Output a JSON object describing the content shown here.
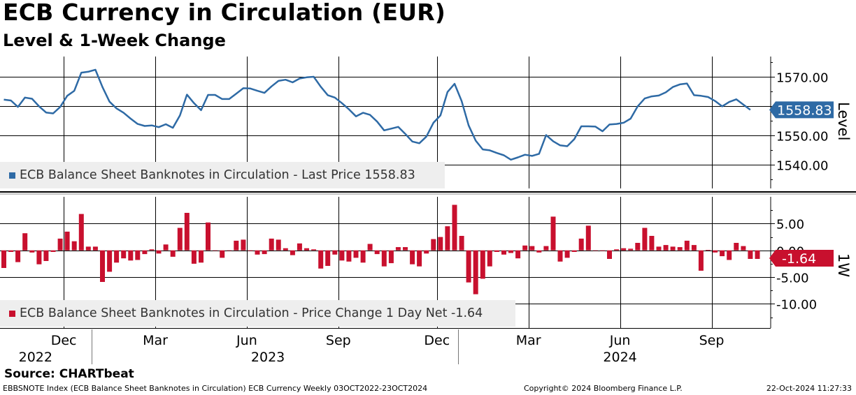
{
  "header": {
    "title": "ECB Currency in Circulation (EUR)",
    "subtitle": "Level & 1-Week Change"
  },
  "legend": {
    "level": "ECB Balance Sheet Banknotes in Circulation - Last Price 1558.83",
    "change": "ECB Balance Sheet Banknotes in Circulation - Price Change 1 Day Net -1.64"
  },
  "footer": {
    "source": "Source: CHARTbeat",
    "index_info": "EBBSNOTE Index (ECB Balance Sheet Banknotes in Circulation) ECB Currency  Weekly 03OCT2022-23OCT2024",
    "copyright": "Copyright© 2024 Bloomberg Finance L.P.",
    "timestamp": "22-Oct-2024 11:27:33"
  },
  "colors": {
    "level_line": "#2e6aa5",
    "change_bar": "#c8102e",
    "grid": "#000000",
    "legend_bg": "#eeeeee"
  },
  "chart_data": [
    {
      "type": "line",
      "name": "Level",
      "axis_label": "Level",
      "ylim": [
        1532,
        1577
      ],
      "yticks": [
        1540,
        1550,
        1560,
        1570
      ],
      "ytick_labels": [
        "1540.00",
        "1550.00",
        "1560.00",
        "1570.00"
      ],
      "last_value_label": "1558.83",
      "values": [
        1562.3,
        1562.0,
        1559.8,
        1563.0,
        1562.6,
        1560.0,
        1557.9,
        1557.6,
        1559.8,
        1563.6,
        1565.3,
        1571.5,
        1571.8,
        1572.5,
        1566.6,
        1561.6,
        1559.3,
        1557.8,
        1555.8,
        1554.0,
        1553.3,
        1553.5,
        1552.9,
        1553.9,
        1552.7,
        1556.9,
        1564.0,
        1561.1,
        1558.7,
        1563.9,
        1563.9,
        1562.5,
        1562.5,
        1564.3,
        1566.2,
        1566.1,
        1565.3,
        1564.6,
        1566.8,
        1568.7,
        1569.1,
        1568.2,
        1569.5,
        1569.9,
        1570.1,
        1566.7,
        1563.8,
        1563.0,
        1561.1,
        1559.0,
        1556.6,
        1557.8,
        1557.1,
        1554.8,
        1551.8,
        1552.4,
        1553.0,
        1550.6,
        1548.0,
        1547.4,
        1549.7,
        1554.4,
        1556.9,
        1564.9,
        1567.7,
        1561.8,
        1553.5,
        1548.3,
        1545.3,
        1545.0,
        1544.1,
        1543.3,
        1541.8,
        1542.6,
        1543.5,
        1543.1,
        1543.8,
        1550.2,
        1548.1,
        1546.7,
        1546.4,
        1548.8,
        1553.2,
        1553.2,
        1553.1,
        1551.5,
        1553.8,
        1554.0,
        1554.4,
        1555.8,
        1560.0,
        1562.7,
        1563.4,
        1563.7,
        1564.8,
        1566.6,
        1567.5,
        1567.8,
        1563.8,
        1563.6,
        1563.2,
        1561.8,
        1560.0,
        1561.5,
        1562.4,
        1560.6,
        1558.8
      ]
    },
    {
      "type": "bar",
      "name": "1-Week Change",
      "axis_label": "1W",
      "ylim": [
        -14.5,
        10
      ],
      "yticks": [
        -10,
        -5,
        0,
        5
      ],
      "ytick_labels": [
        "-10.00",
        "-5.00",
        "0.00",
        "5.00"
      ],
      "last_value_label": "-1.64",
      "values": [
        -3.3,
        -0.3,
        -2.2,
        3.2,
        -0.4,
        -2.6,
        -2.0,
        -0.3,
        2.2,
        3.5,
        1.7,
        6.8,
        0.7,
        0.7,
        -5.9,
        -4.0,
        -2.3,
        -1.5,
        -1.9,
        -1.8,
        -0.7,
        0.2,
        -0.6,
        1.1,
        -1.2,
        4.2,
        7.0,
        -2.5,
        -2.3,
        5.2,
        0.0,
        -1.4,
        0.0,
        1.8,
        2.0,
        -0.1,
        -0.8,
        -0.7,
        2.2,
        2.0,
        0.4,
        -0.9,
        1.3,
        0.4,
        0.2,
        -3.4,
        -2.9,
        -0.8,
        -1.9,
        -2.1,
        -1.4,
        -2.3,
        1.2,
        -0.7,
        -3.0,
        -2.4,
        0.6,
        0.6,
        -2.6,
        -3.0,
        -0.6,
        2.1,
        2.5,
        4.5,
        8.5,
        2.7,
        -6.0,
        -8.2,
        -5.3,
        -3.0,
        -0.3,
        -0.8,
        -0.5,
        -1.5,
        0.9,
        0.8,
        -0.4,
        0.8,
        6.3,
        -2.1,
        -1.4,
        -0.3,
        2.2,
        4.6,
        0.0,
        -0.1,
        -1.6,
        0.2,
        0.4,
        0.3,
        1.4,
        4.2,
        2.7,
        0.7,
        1.0,
        0.7,
        0.6,
        1.8,
        1.0,
        -3.8,
        0.1,
        -0.4,
        -1.1,
        -1.8,
        1.4,
        0.8,
        -1.6,
        -1.6
      ]
    }
  ],
  "x_axis": {
    "month_labels": [
      "Dec",
      "Mar",
      "Jun",
      "Sep",
      "Dec",
      "Mar",
      "Jun",
      "Sep"
    ],
    "month_weeks": [
      8.5,
      21.5,
      34.5,
      47.5,
      61.5,
      74.5,
      87.5,
      100.5
    ],
    "year_labels": [
      "2022",
      "2023",
      "2024"
    ],
    "year_weeks": [
      4.5,
      37.5,
      87.5
    ],
    "year_boundaries": [
      12.5,
      64.5
    ]
  }
}
